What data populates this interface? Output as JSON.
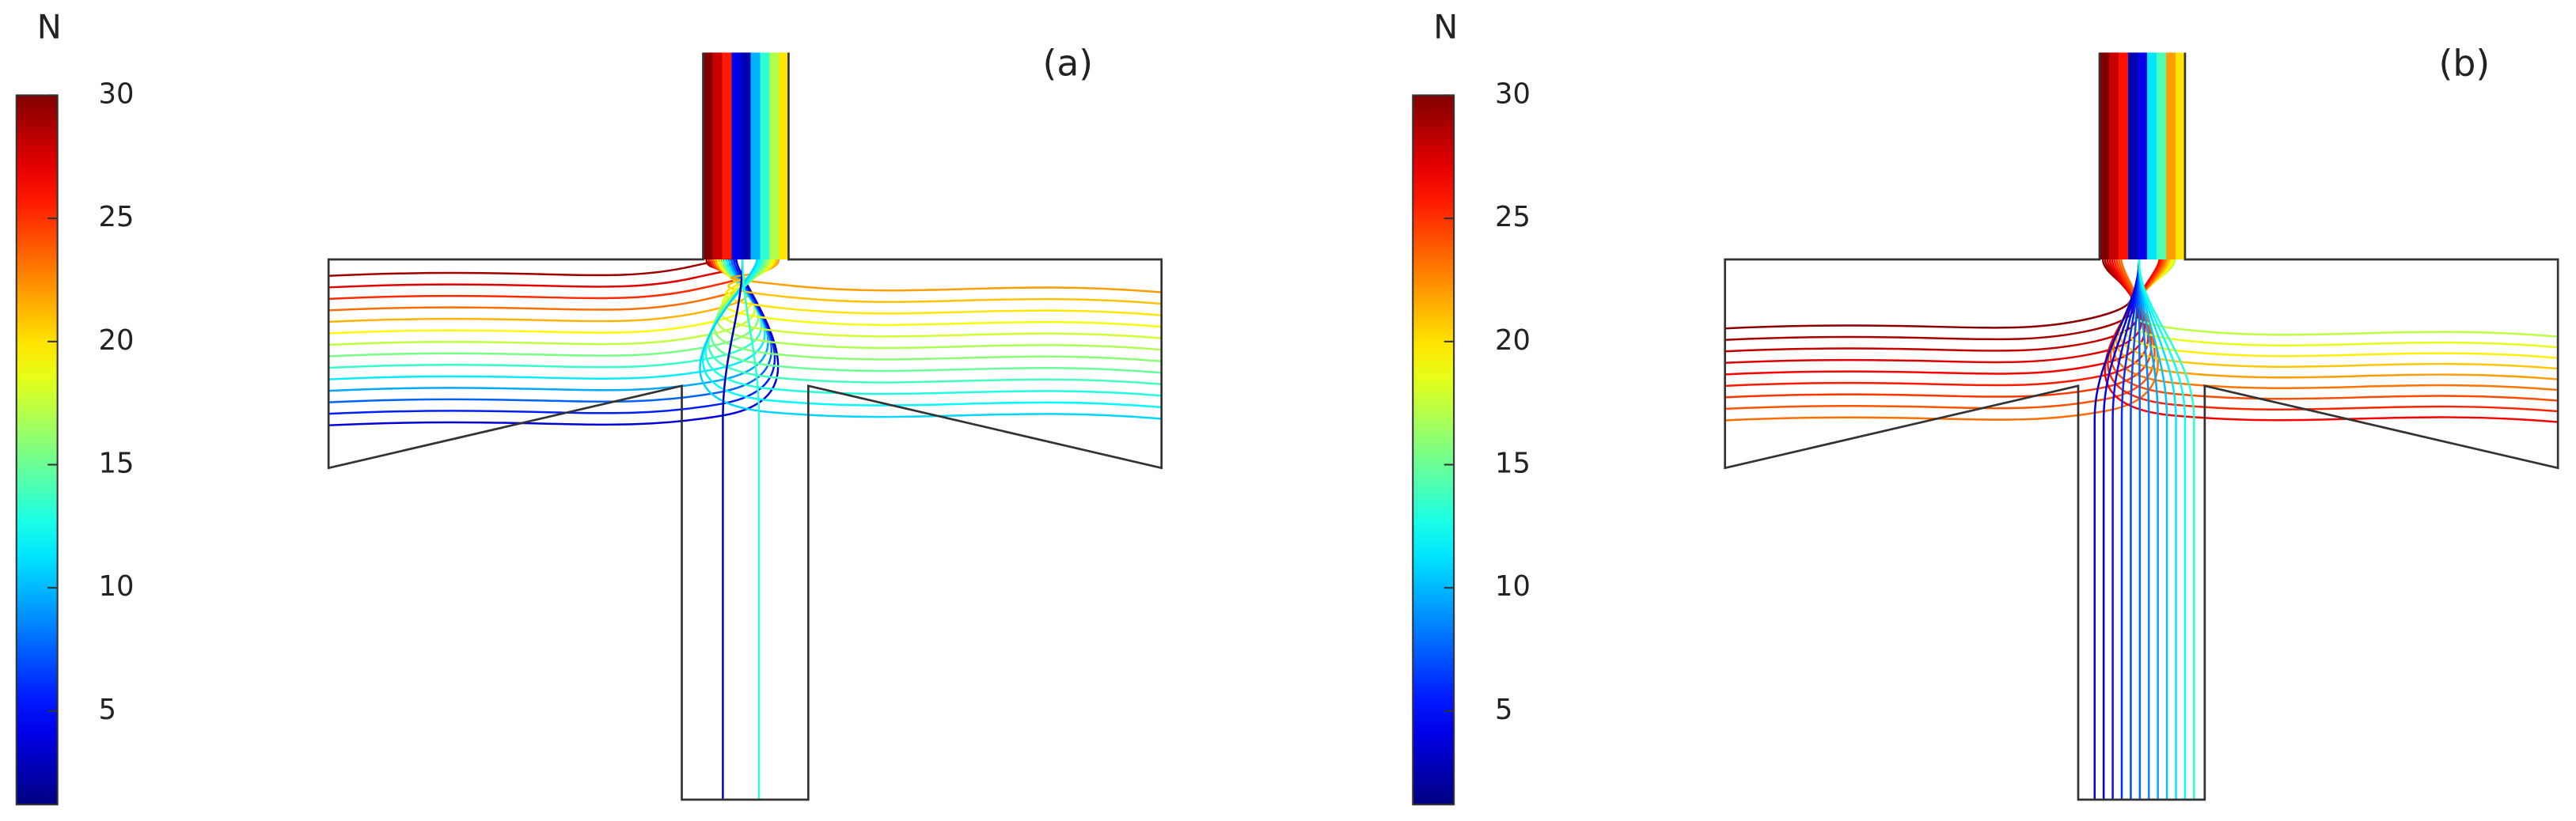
{
  "chart_data": [
    {
      "type": "streamline",
      "label": "(a)",
      "colorbar_title": "N",
      "clim": [
        1.2,
        30
      ],
      "cticks": [
        5,
        10,
        15,
        20,
        25,
        30
      ],
      "colormap": "jet"
    },
    {
      "type": "streamline",
      "label": "(b)",
      "colorbar_title": "N",
      "clim": [
        1.2,
        30
      ],
      "cticks": [
        5,
        10,
        15,
        20,
        25,
        30
      ],
      "colormap": "jet"
    }
  ]
}
